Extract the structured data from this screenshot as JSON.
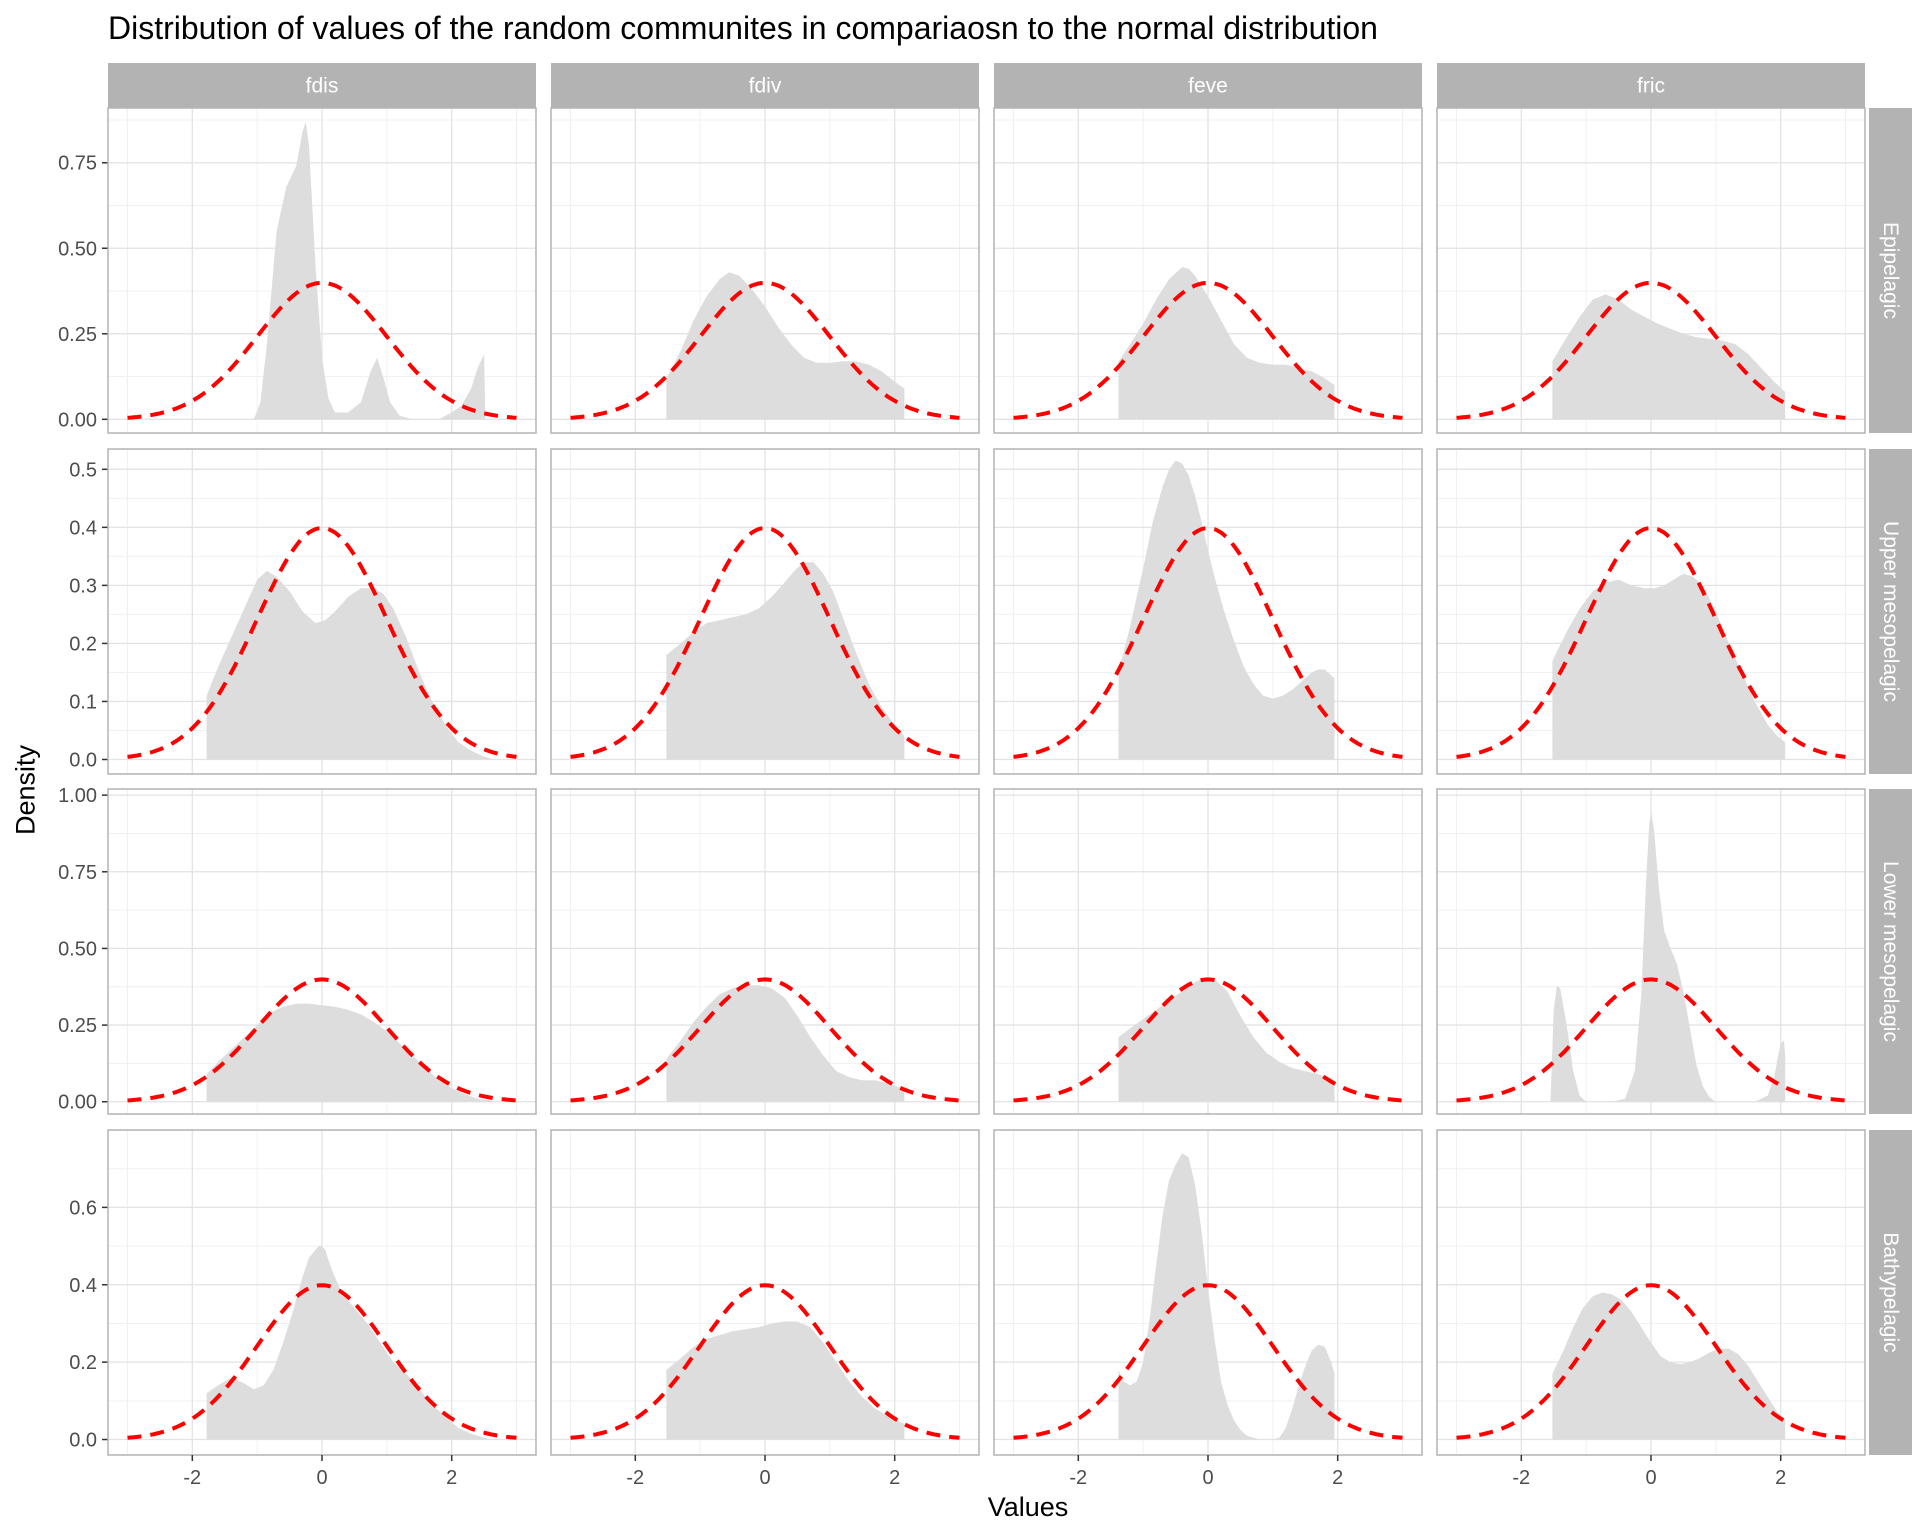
{
  "chart_data": {
    "type": "area",
    "title": "Distribution of values of the random communites in compariaosn to the normal distribution",
    "xlabel": "Values",
    "ylabel": "Density",
    "columns": [
      "fdis",
      "fdiv",
      "feve",
      "fric"
    ],
    "rows": [
      "Epipelagic",
      "Upper mesopelagic",
      "Lower mesopelagic",
      "Bathypelagic"
    ],
    "xlim": [
      -3.3,
      3.3
    ],
    "x_ticks": [
      -2,
      0,
      2
    ],
    "x_tick_labels": [
      "-2",
      "0",
      "2"
    ],
    "row_axes": [
      {
        "ylim": [
          -0.04,
          0.91
        ],
        "ticks": [
          0,
          0.25,
          0.5,
          0.75
        ],
        "tick_labels": [
          "0.00",
          "0.25",
          "0.50",
          "0.75"
        ]
      },
      {
        "ylim": [
          -0.025,
          0.535
        ],
        "ticks": [
          0,
          0.1,
          0.2,
          0.3,
          0.4,
          0.5
        ],
        "tick_labels": [
          "0.0",
          "0.1",
          "0.2",
          "0.3",
          "0.4",
          "0.5"
        ]
      },
      {
        "ylim": [
          -0.04,
          1.02
        ],
        "ticks": [
          0,
          0.25,
          0.5,
          0.75,
          1.0
        ],
        "tick_labels": [
          "0.00",
          "0.25",
          "0.50",
          "0.75",
          "1.00"
        ]
      },
      {
        "ylim": [
          -0.04,
          0.8
        ],
        "ticks": [
          0,
          0.2,
          0.4,
          0.6
        ],
        "tick_labels": [
          "0.0",
          "0.2",
          "0.4",
          "0.6"
        ]
      }
    ],
    "normal_reference": {
      "mean": 0,
      "sd": 1,
      "x_range": [
        -3,
        3
      ],
      "color": "#ff0000",
      "style": "dashed"
    },
    "fill_color": "#dddddd",
    "strip_color": "#b3b3b3",
    "grid": true,
    "densities": [
      [
        {
          "x": [
            -1.05,
            -0.95,
            -0.85,
            -0.7,
            -0.55,
            -0.4,
            -0.3,
            -0.25,
            -0.2,
            -0.1,
            0.0,
            0.1,
            0.2,
            0.4,
            0.6,
            0.75,
            0.85,
            0.95,
            1.05,
            1.2,
            1.4,
            1.6,
            1.8,
            2.0,
            2.15,
            2.3,
            2.4,
            2.5,
            2.52
          ],
          "y": [
            0.0,
            0.05,
            0.22,
            0.55,
            0.68,
            0.74,
            0.84,
            0.87,
            0.8,
            0.45,
            0.18,
            0.06,
            0.02,
            0.02,
            0.05,
            0.14,
            0.18,
            0.12,
            0.05,
            0.01,
            0.0,
            0.0,
            0.0,
            0.02,
            0.04,
            0.09,
            0.15,
            0.19,
            0.0
          ]
        },
        {
          "x": [
            -1.52,
            -1.52,
            -1.3,
            -1.1,
            -0.9,
            -0.7,
            -0.55,
            -0.4,
            -0.2,
            0.0,
            0.2,
            0.4,
            0.6,
            0.8,
            1.0,
            1.2,
            1.4,
            1.6,
            1.8,
            2.0,
            2.15,
            2.15
          ],
          "y": [
            0.0,
            0.12,
            0.2,
            0.29,
            0.36,
            0.41,
            0.43,
            0.42,
            0.38,
            0.33,
            0.27,
            0.22,
            0.18,
            0.165,
            0.165,
            0.17,
            0.17,
            0.16,
            0.14,
            0.11,
            0.09,
            0.0
          ]
        },
        {
          "x": [
            -1.38,
            -1.38,
            -1.2,
            -1.0,
            -0.8,
            -0.6,
            -0.4,
            -0.3,
            -0.2,
            0.0,
            0.2,
            0.4,
            0.6,
            0.8,
            1.0,
            1.2,
            1.4,
            1.6,
            1.8,
            1.95,
            1.95
          ],
          "y": [
            0.0,
            0.17,
            0.22,
            0.28,
            0.35,
            0.41,
            0.445,
            0.44,
            0.42,
            0.36,
            0.29,
            0.22,
            0.18,
            0.165,
            0.16,
            0.16,
            0.15,
            0.14,
            0.12,
            0.1,
            0.0
          ]
        },
        {
          "x": [
            -1.52,
            -1.52,
            -1.3,
            -1.1,
            -0.9,
            -0.7,
            -0.5,
            -0.3,
            -0.1,
            0.1,
            0.3,
            0.5,
            0.7,
            0.9,
            1.1,
            1.3,
            1.5,
            1.7,
            1.9,
            2.07,
            2.07
          ],
          "y": [
            0.0,
            0.17,
            0.24,
            0.3,
            0.35,
            0.365,
            0.35,
            0.32,
            0.3,
            0.28,
            0.265,
            0.25,
            0.24,
            0.235,
            0.23,
            0.22,
            0.19,
            0.15,
            0.11,
            0.08,
            0.0
          ]
        }
      ],
      [
        {
          "x": [
            -1.78,
            -1.78,
            -1.6,
            -1.4,
            -1.2,
            -1.0,
            -0.85,
            -0.7,
            -0.5,
            -0.3,
            -0.1,
            0.05,
            0.2,
            0.4,
            0.6,
            0.8,
            0.95,
            1.1,
            1.3,
            1.5,
            1.7,
            1.9,
            2.1,
            2.3,
            2.5,
            2.65,
            2.65
          ],
          "y": [
            0.0,
            0.11,
            0.16,
            0.21,
            0.26,
            0.31,
            0.325,
            0.315,
            0.29,
            0.255,
            0.235,
            0.24,
            0.255,
            0.28,
            0.295,
            0.295,
            0.285,
            0.26,
            0.21,
            0.15,
            0.1,
            0.06,
            0.03,
            0.015,
            0.005,
            0.0,
            0.0
          ]
        },
        {
          "x": [
            -1.52,
            -1.52,
            -1.3,
            -1.1,
            -0.9,
            -0.7,
            -0.5,
            -0.3,
            -0.1,
            0.1,
            0.3,
            0.45,
            0.6,
            0.75,
            0.9,
            1.05,
            1.2,
            1.4,
            1.6,
            1.8,
            2.0,
            2.15,
            2.15
          ],
          "y": [
            0.0,
            0.18,
            0.2,
            0.22,
            0.235,
            0.24,
            0.245,
            0.25,
            0.26,
            0.28,
            0.305,
            0.325,
            0.34,
            0.34,
            0.32,
            0.29,
            0.245,
            0.185,
            0.13,
            0.09,
            0.06,
            0.04,
            0.0
          ]
        },
        {
          "x": [
            -1.38,
            -1.38,
            -1.2,
            -1.0,
            -0.85,
            -0.7,
            -0.6,
            -0.5,
            -0.4,
            -0.3,
            -0.2,
            -0.1,
            0.0,
            0.1,
            0.25,
            0.4,
            0.55,
            0.7,
            0.85,
            1.0,
            1.15,
            1.3,
            1.45,
            1.6,
            1.7,
            1.8,
            1.95,
            1.95
          ],
          "y": [
            0.0,
            0.15,
            0.23,
            0.33,
            0.41,
            0.47,
            0.5,
            0.515,
            0.51,
            0.49,
            0.455,
            0.41,
            0.36,
            0.315,
            0.255,
            0.205,
            0.16,
            0.13,
            0.11,
            0.105,
            0.11,
            0.12,
            0.135,
            0.15,
            0.155,
            0.155,
            0.14,
            0.0
          ]
        },
        {
          "x": [
            -1.52,
            -1.52,
            -1.3,
            -1.1,
            -0.9,
            -0.7,
            -0.5,
            -0.3,
            -0.1,
            0.05,
            0.2,
            0.35,
            0.5,
            0.65,
            0.8,
            1.0,
            1.2,
            1.4,
            1.6,
            1.8,
            1.95,
            2.07,
            2.07
          ],
          "y": [
            0.0,
            0.17,
            0.22,
            0.26,
            0.29,
            0.305,
            0.31,
            0.3,
            0.295,
            0.295,
            0.3,
            0.31,
            0.32,
            0.315,
            0.3,
            0.255,
            0.2,
            0.15,
            0.1,
            0.06,
            0.04,
            0.03,
            0.0
          ]
        }
      ],
      [
        {
          "x": [
            -1.78,
            -1.78,
            -1.6,
            -1.4,
            -1.2,
            -1.0,
            -0.8,
            -0.6,
            -0.4,
            -0.2,
            0.0,
            0.2,
            0.4,
            0.6,
            0.8,
            1.0,
            1.2,
            1.4,
            1.6,
            1.8,
            2.0,
            2.2,
            2.4,
            2.6,
            2.65,
            2.65
          ],
          "y": [
            0.0,
            0.09,
            0.13,
            0.17,
            0.21,
            0.25,
            0.29,
            0.31,
            0.32,
            0.32,
            0.315,
            0.31,
            0.3,
            0.285,
            0.26,
            0.23,
            0.19,
            0.15,
            0.11,
            0.07,
            0.045,
            0.025,
            0.01,
            0.005,
            0.0,
            0.0
          ]
        },
        {
          "x": [
            -1.52,
            -1.52,
            -1.3,
            -1.1,
            -0.9,
            -0.7,
            -0.5,
            -0.3,
            -0.1,
            0.1,
            0.3,
            0.5,
            0.7,
            0.9,
            1.1,
            1.3,
            1.5,
            1.7,
            1.9,
            2.15,
            2.15
          ],
          "y": [
            0.0,
            0.14,
            0.2,
            0.26,
            0.31,
            0.35,
            0.37,
            0.38,
            0.38,
            0.37,
            0.34,
            0.28,
            0.21,
            0.15,
            0.1,
            0.08,
            0.07,
            0.07,
            0.06,
            0.04,
            0.0
          ]
        },
        {
          "x": [
            -1.38,
            -1.38,
            -1.2,
            -1.0,
            -0.8,
            -0.6,
            -0.4,
            -0.2,
            -0.05,
            0.1,
            0.3,
            0.5,
            0.7,
            0.9,
            1.1,
            1.3,
            1.5,
            1.7,
            1.95,
            1.95
          ],
          "y": [
            0.0,
            0.21,
            0.24,
            0.27,
            0.3,
            0.33,
            0.36,
            0.39,
            0.405,
            0.4,
            0.36,
            0.28,
            0.21,
            0.16,
            0.13,
            0.11,
            0.1,
            0.09,
            0.07,
            0.0
          ]
        },
        {
          "x": [
            -1.55,
            -1.5,
            -1.45,
            -1.4,
            -1.3,
            -1.2,
            -1.1,
            -1.0,
            -0.9,
            -0.8,
            -0.6,
            -0.4,
            -0.25,
            -0.15,
            -0.08,
            -0.03,
            0.0,
            0.05,
            0.12,
            0.2,
            0.3,
            0.4,
            0.5,
            0.6,
            0.7,
            0.8,
            0.9,
            1.0,
            1.2,
            1.4,
            1.6,
            1.8,
            1.9,
            1.95,
            2.0,
            2.05,
            2.07,
            2.07
          ],
          "y": [
            0.0,
            0.3,
            0.38,
            0.37,
            0.25,
            0.1,
            0.02,
            0.0,
            0.0,
            0.0,
            0.0,
            0.01,
            0.1,
            0.35,
            0.7,
            0.9,
            0.95,
            0.88,
            0.7,
            0.56,
            0.5,
            0.45,
            0.36,
            0.24,
            0.12,
            0.05,
            0.015,
            0.0,
            0.0,
            0.0,
            0.0,
            0.02,
            0.08,
            0.14,
            0.19,
            0.2,
            0.15,
            0.0
          ]
        }
      ],
      [
        {
          "x": [
            -1.78,
            -1.78,
            -1.6,
            -1.4,
            -1.2,
            -1.05,
            -0.9,
            -0.75,
            -0.6,
            -0.45,
            -0.3,
            -0.2,
            -0.1,
            -0.05,
            0.0,
            0.05,
            0.15,
            0.3,
            0.5,
            0.7,
            0.9,
            1.1,
            1.3,
            1.5,
            1.7,
            1.9,
            2.1,
            2.3,
            2.5,
            2.65,
            2.65
          ],
          "y": [
            0.0,
            0.12,
            0.14,
            0.16,
            0.145,
            0.13,
            0.14,
            0.18,
            0.25,
            0.33,
            0.42,
            0.47,
            0.49,
            0.5,
            0.5,
            0.49,
            0.44,
            0.38,
            0.34,
            0.3,
            0.25,
            0.2,
            0.17,
            0.13,
            0.09,
            0.06,
            0.03,
            0.015,
            0.005,
            0.0,
            0.0
          ]
        },
        {
          "x": [
            -1.52,
            -1.52,
            -1.3,
            -1.1,
            -0.9,
            -0.7,
            -0.5,
            -0.3,
            -0.1,
            0.1,
            0.3,
            0.5,
            0.7,
            0.9,
            1.1,
            1.3,
            1.5,
            1.7,
            1.9,
            2.15,
            2.15
          ],
          "y": [
            0.0,
            0.18,
            0.21,
            0.24,
            0.26,
            0.27,
            0.28,
            0.285,
            0.29,
            0.3,
            0.305,
            0.305,
            0.29,
            0.25,
            0.2,
            0.15,
            0.11,
            0.08,
            0.06,
            0.04,
            0.0
          ]
        },
        {
          "x": [
            -1.38,
            -1.38,
            -1.3,
            -1.2,
            -1.1,
            -1.0,
            -0.9,
            -0.8,
            -0.7,
            -0.6,
            -0.5,
            -0.4,
            -0.3,
            -0.2,
            -0.1,
            0.0,
            0.1,
            0.2,
            0.3,
            0.4,
            0.5,
            0.6,
            0.7,
            0.8,
            0.9,
            1.0,
            1.1,
            1.2,
            1.3,
            1.4,
            1.5,
            1.6,
            1.7,
            1.8,
            1.85,
            1.9,
            1.95,
            1.95
          ],
          "y": [
            0.0,
            0.18,
            0.15,
            0.14,
            0.15,
            0.2,
            0.31,
            0.45,
            0.58,
            0.67,
            0.71,
            0.74,
            0.73,
            0.66,
            0.54,
            0.39,
            0.26,
            0.15,
            0.09,
            0.05,
            0.025,
            0.01,
            0.005,
            0.0,
            0.0,
            0.0,
            0.005,
            0.03,
            0.08,
            0.14,
            0.19,
            0.23,
            0.245,
            0.24,
            0.22,
            0.2,
            0.17,
            0.0
          ]
        },
        {
          "x": [
            -1.52,
            -1.52,
            -1.35,
            -1.2,
            -1.05,
            -0.9,
            -0.75,
            -0.6,
            -0.45,
            -0.3,
            -0.15,
            0.0,
            0.15,
            0.3,
            0.45,
            0.6,
            0.75,
            0.9,
            1.05,
            1.2,
            1.35,
            1.5,
            1.65,
            1.8,
            1.95,
            2.07,
            2.07
          ],
          "y": [
            0.0,
            0.17,
            0.23,
            0.29,
            0.34,
            0.37,
            0.38,
            0.375,
            0.36,
            0.33,
            0.29,
            0.25,
            0.215,
            0.2,
            0.195,
            0.2,
            0.21,
            0.225,
            0.235,
            0.235,
            0.22,
            0.19,
            0.15,
            0.11,
            0.07,
            0.05,
            0.0
          ]
        }
      ]
    ]
  }
}
